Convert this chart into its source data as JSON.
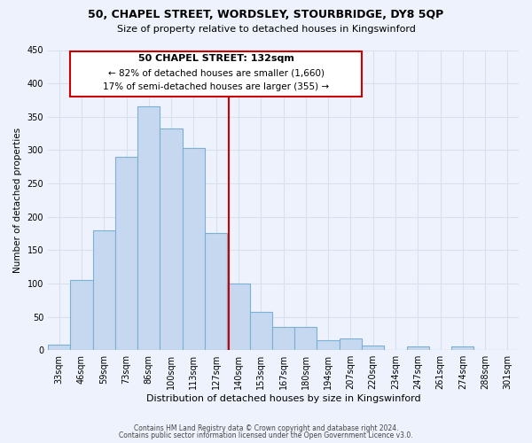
{
  "title": "50, CHAPEL STREET, WORDSLEY, STOURBRIDGE, DY8 5QP",
  "subtitle": "Size of property relative to detached houses in Kingswinford",
  "xlabel": "Distribution of detached houses by size in Kingswinford",
  "ylabel": "Number of detached properties",
  "bar_labels": [
    "33sqm",
    "46sqm",
    "59sqm",
    "73sqm",
    "86sqm",
    "100sqm",
    "113sqm",
    "127sqm",
    "140sqm",
    "153sqm",
    "167sqm",
    "180sqm",
    "194sqm",
    "207sqm",
    "220sqm",
    "234sqm",
    "247sqm",
    "261sqm",
    "274sqm",
    "288sqm",
    "301sqm"
  ],
  "bar_values": [
    8,
    105,
    180,
    290,
    365,
    333,
    303,
    175,
    100,
    58,
    35,
    35,
    15,
    18,
    7,
    0,
    5,
    0,
    5,
    0,
    0
  ],
  "bar_color": "#c5d8f0",
  "bar_edge_color": "#7bafd4",
  "background_color": "#eef2fc",
  "grid_color": "#d8e0f0",
  "property_label": "50 CHAPEL STREET: 132sqm",
  "annotation_line1": "← 82% of detached houses are smaller (1,660)",
  "annotation_line2": "17% of semi-detached houses are larger (355) →",
  "vline_color": "#cc0000",
  "vline_x_index": 7.55,
  "ylim": [
    0,
    450
  ],
  "footer1": "Contains HM Land Registry data © Crown copyright and database right 2024.",
  "footer2": "Contains public sector information licensed under the Open Government Licence v3.0."
}
